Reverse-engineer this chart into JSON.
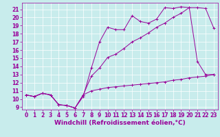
{
  "bg_color": "#c8ecec",
  "line_color": "#990099",
  "xlabel": "Windchill (Refroidissement éolien,°C)",
  "xlim": [
    -0.5,
    23.5
  ],
  "ylim": [
    8.7,
    21.8
  ],
  "yticks": [
    9,
    10,
    11,
    12,
    13,
    14,
    15,
    16,
    17,
    18,
    19,
    20,
    21
  ],
  "xticks": [
    0,
    1,
    2,
    3,
    4,
    5,
    6,
    7,
    8,
    9,
    10,
    11,
    12,
    13,
    14,
    15,
    16,
    17,
    18,
    19,
    20,
    21,
    22,
    23
  ],
  "line1_x": [
    0,
    1,
    2,
    3,
    4,
    5,
    6,
    7,
    8,
    9,
    10,
    11,
    12,
    13,
    14,
    15,
    16,
    17,
    18,
    19,
    20,
    21,
    22,
    23
  ],
  "line1_y": [
    10.5,
    10.3,
    10.7,
    10.5,
    9.3,
    9.2,
    8.9,
    10.3,
    13.8,
    17.0,
    18.8,
    18.5,
    18.5,
    20.2,
    19.5,
    19.3,
    19.8,
    21.2,
    21.1,
    21.3,
    21.2,
    14.6,
    13.0,
    13.0
  ],
  "line2_x": [
    0,
    1,
    2,
    3,
    4,
    5,
    6,
    7,
    8,
    9,
    10,
    11,
    12,
    13,
    14,
    15,
    16,
    17,
    18,
    19,
    20,
    21,
    22,
    23
  ],
  "line2_y": [
    10.5,
    10.3,
    10.7,
    10.5,
    9.3,
    9.2,
    8.9,
    10.5,
    12.8,
    13.8,
    15.1,
    15.5,
    16.2,
    17.0,
    17.5,
    18.1,
    18.8,
    19.3,
    20.0,
    20.5,
    21.2,
    21.2,
    21.1,
    18.7
  ],
  "line3_x": [
    0,
    1,
    2,
    3,
    4,
    5,
    6,
    7,
    8,
    9,
    10,
    11,
    12,
    13,
    14,
    15,
    16,
    17,
    18,
    19,
    20,
    21,
    22,
    23
  ],
  "line3_y": [
    10.5,
    10.3,
    10.7,
    10.5,
    9.3,
    9.2,
    8.9,
    10.5,
    11.0,
    11.2,
    11.4,
    11.5,
    11.6,
    11.7,
    11.8,
    11.9,
    12.0,
    12.1,
    12.3,
    12.4,
    12.6,
    12.7,
    12.8,
    13.0
  ],
  "grid_color": "#ffffff",
  "tick_fontsize": 5.5,
  "label_fontsize": 6.5
}
